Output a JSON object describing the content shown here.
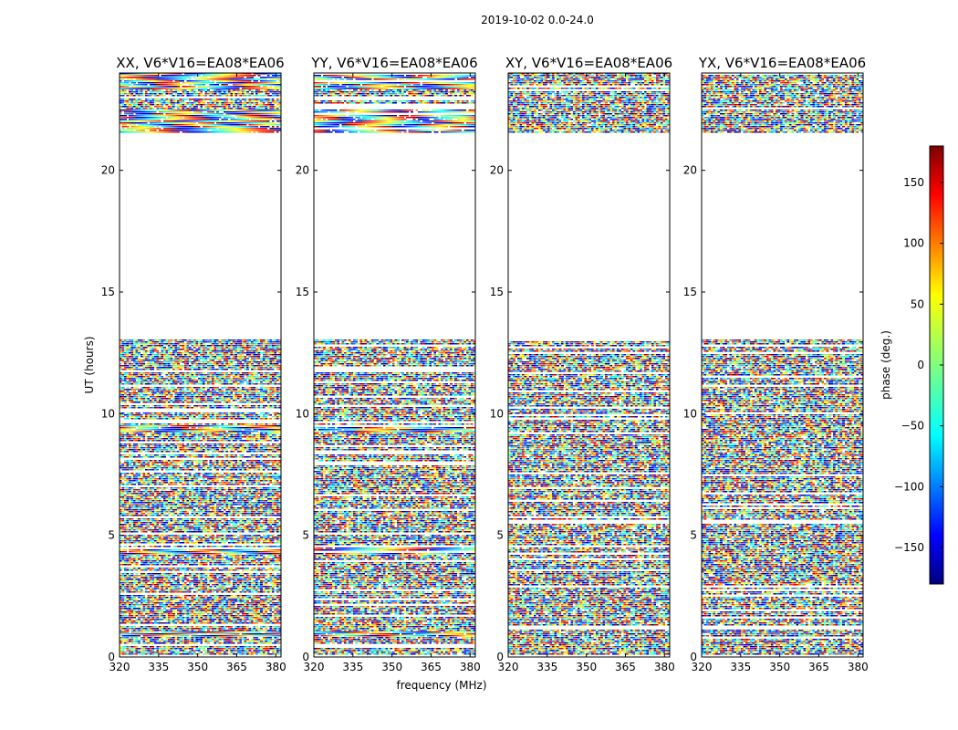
{
  "chart_data": {
    "type": "heatmap",
    "suptitle": "2019-10-02 0.0-24.0",
    "xlabel": "frequency (MHz)",
    "ylabel": "UT (hours)",
    "xlim": [
      320,
      382
    ],
    "ylim": [
      0,
      24
    ],
    "xticks": [
      "320",
      "335",
      "350",
      "365",
      "380"
    ],
    "xtick_values": [
      320,
      335,
      350,
      365,
      380
    ],
    "yticks": [
      "0",
      "5",
      "10",
      "15",
      "20"
    ],
    "ytick_values": [
      0,
      5,
      10,
      15,
      20
    ],
    "colorbar": {
      "label": "phase (deg.)",
      "range": [
        -180,
        180
      ],
      "ticks": [
        "150",
        "100",
        "50",
        "0",
        "−50",
        "−100",
        "−150"
      ],
      "tick_values": [
        150,
        100,
        50,
        0,
        -50,
        -100,
        -150
      ],
      "colormap": "jet",
      "colors": [
        "#00007f",
        "#0000ff",
        "#007fff",
        "#00ffff",
        "#7fff7f",
        "#ffff00",
        "#ff7f00",
        "#ff0000",
        "#7f0000"
      ]
    },
    "panels": [
      {
        "title": "XX, V6*V16=EA08*EA06",
        "polarization": "XX"
      },
      {
        "title": "YY, V6*V16=EA08*EA06",
        "polarization": "YY"
      },
      {
        "title": "XY, V6*V16=EA08*EA06",
        "polarization": "XY"
      },
      {
        "title": "YX, V6*V16=EA08*EA06",
        "polarization": "YX"
      }
    ],
    "data_ut_ranges": [
      [
        0.05,
        13.05
      ],
      [
        21.5,
        24.0
      ]
    ],
    "no_data_ut_ranges": [
      [
        13.05,
        21.5
      ]
    ],
    "coherent_fringe_ut_bands": [
      {
        "ut": [
          0.8,
          1.05
        ],
        "panels": [
          "XX",
          "YY"
        ]
      },
      {
        "ut": [
          4.2,
          4.5
        ],
        "panels": [
          "XX",
          "YY"
        ]
      },
      {
        "ut": [
          9.2,
          9.5
        ],
        "panels": [
          "XX",
          "YY"
        ]
      },
      {
        "ut": [
          21.5,
          22.5
        ],
        "panels": [
          "XX",
          "YY"
        ]
      },
      {
        "ut": [
          23.3,
          24.0
        ],
        "panels": [
          "XX",
          "YY"
        ]
      }
    ]
  }
}
